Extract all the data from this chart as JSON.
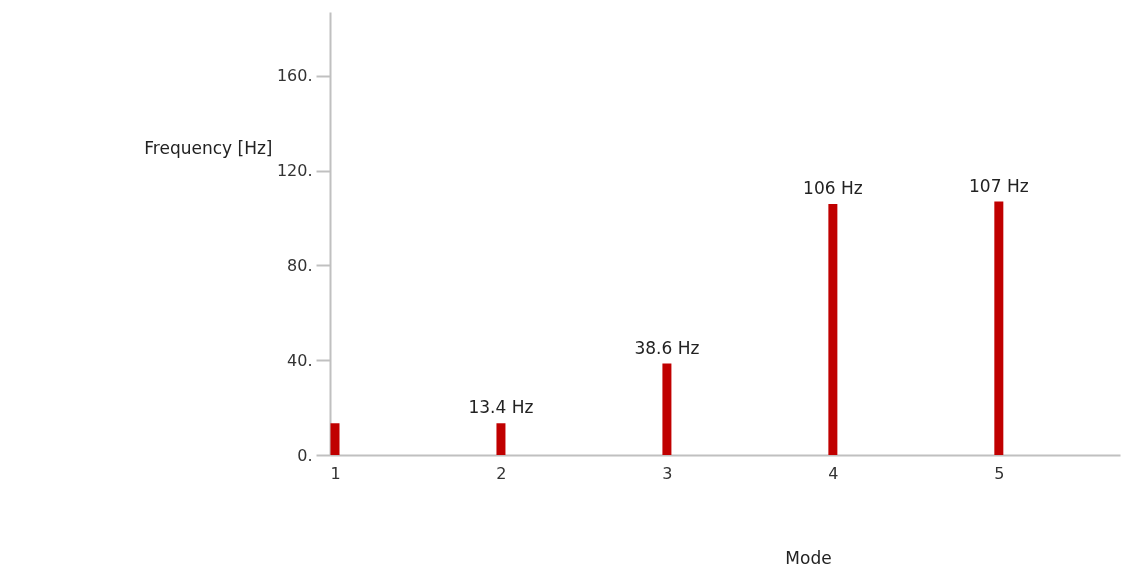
{
  "chart_data": {
    "type": "bar",
    "xlabel": "Mode",
    "ylabel": "Frequency [Hz]",
    "x": [
      1,
      2,
      3,
      4,
      5
    ],
    "values": [
      13.4,
      13.4,
      38.6,
      106,
      107
    ],
    "value_labels": [
      null,
      "13.4 Hz",
      "38.6 Hz",
      "106 Hz",
      "107 Hz"
    ],
    "color": "#c00000",
    "xlim": [
      1,
      5.7
    ],
    "xticks": [
      1,
      2,
      3,
      4,
      5
    ],
    "ylim": [
      0,
      187
    ],
    "yticks": [
      {
        "value": 0,
        "label": "0."
      },
      {
        "value": 40,
        "label": "40."
      },
      {
        "value": 80,
        "label": "80."
      },
      {
        "value": 120,
        "label": "120."
      },
      {
        "value": 160,
        "label": "160."
      }
    ]
  }
}
